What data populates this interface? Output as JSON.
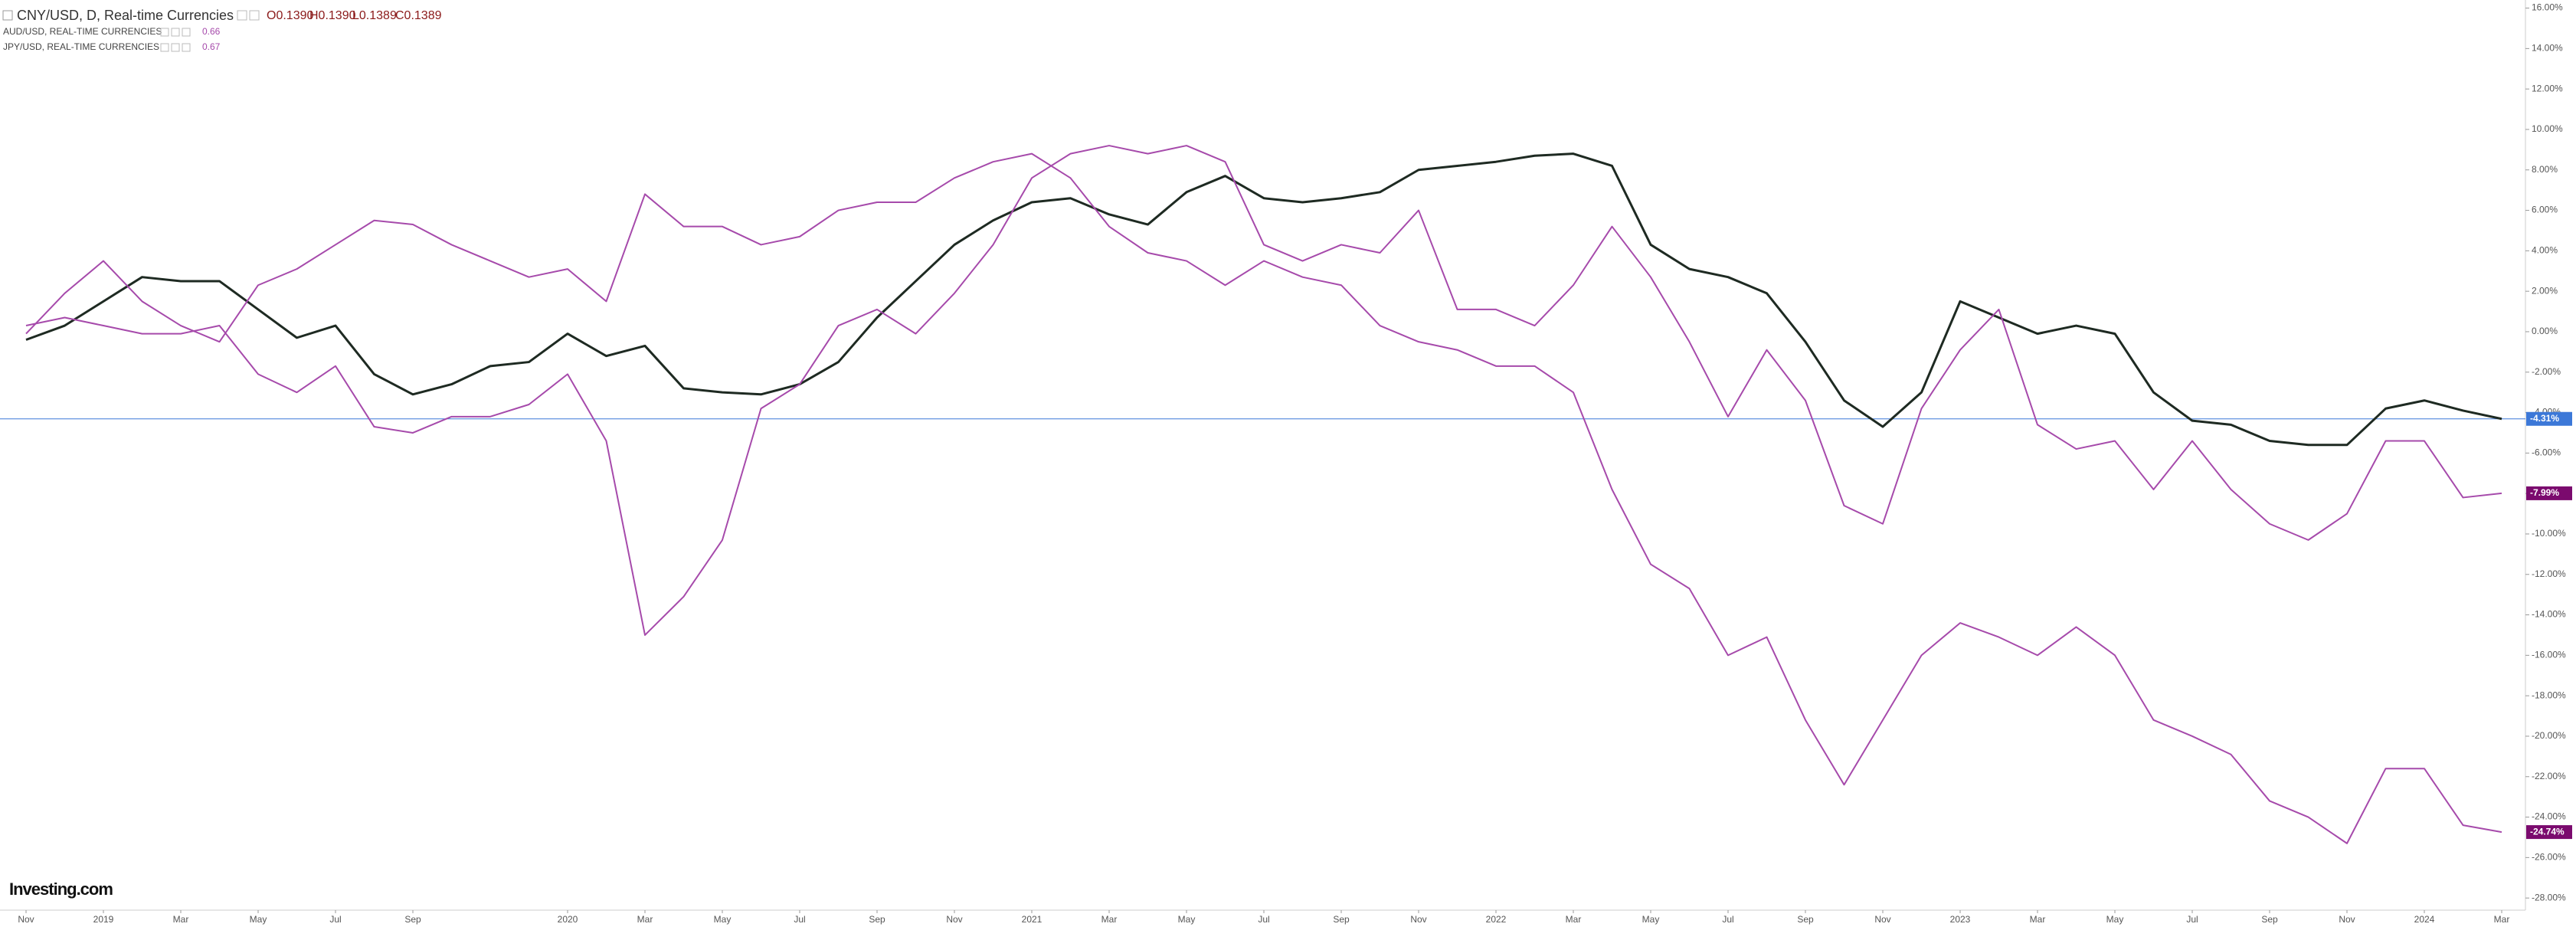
{
  "chart_data": {
    "type": "line",
    "logo": "Investing.com",
    "ohlc": [
      "O0.1390",
      "H0.1390",
      "L0.1389",
      "C0.1389"
    ],
    "categories": [
      "Nov",
      null,
      "2019",
      null,
      "Mar",
      null,
      "May",
      null,
      "Jul",
      null,
      "Sep",
      null,
      null,
      null,
      "2020",
      null,
      "Mar",
      null,
      "May",
      null,
      "Jul",
      null,
      "Sep",
      null,
      "Nov",
      null,
      "2021",
      null,
      "Mar",
      null,
      "May",
      null,
      "Jul",
      null,
      "Sep",
      null,
      "Nov",
      null,
      "2022",
      null,
      "Mar",
      null,
      "May",
      null,
      "Jul",
      null,
      "Sep",
      null,
      "Nov",
      null,
      "2023",
      null,
      "Mar",
      null,
      "May",
      null,
      "Jul",
      null,
      "Sep",
      null,
      "Nov",
      null,
      "2024",
      null,
      "Mar"
    ],
    "ylim": [
      -28.6,
      16.4
    ],
    "yticks": [
      {
        "value": 16,
        "label": "16.00%"
      },
      {
        "value": 14,
        "label": "14.00%"
      },
      {
        "value": 12,
        "label": "12.00%"
      },
      {
        "value": 10,
        "label": "10.00%"
      },
      {
        "value": 8,
        "label": "8.00%"
      },
      {
        "value": 6,
        "label": "6.00%"
      },
      {
        "value": 4,
        "label": "4.00%"
      },
      {
        "value": 2,
        "label": "2.00%"
      },
      {
        "value": 0,
        "label": "0.00%"
      },
      {
        "value": -2,
        "label": "-2.00%"
      },
      {
        "value": -4,
        "label": "-4.00%"
      },
      {
        "value": -6,
        "label": "-6.00%"
      },
      {
        "value": -8,
        "label": "-8.00%"
      },
      {
        "value": -10,
        "label": "-10.00%"
      },
      {
        "value": -12,
        "label": "-12.00%"
      },
      {
        "value": -14,
        "label": "-14.00%"
      },
      {
        "value": -16,
        "label": "-16.00%"
      },
      {
        "value": -18,
        "label": "-18.00%"
      },
      {
        "value": -20,
        "label": "-20.00%"
      },
      {
        "value": -22,
        "label": "-22.00%"
      },
      {
        "value": -24,
        "label": "-24.00%"
      },
      {
        "value": -26,
        "label": "-26.00%"
      },
      {
        "value": -28,
        "label": "-28.00%"
      }
    ],
    "grid": false,
    "series": [
      {
        "name": "CNY/USD, D, Real-time Currencies",
        "color": "#1e2a22",
        "label_color": "#3c78d8",
        "price_line": true,
        "last_label": "-4.31%",
        "values": [
          -0.4,
          0.3,
          1.5,
          2.7,
          2.5,
          2.5,
          1.1,
          -0.3,
          0.3,
          -2.1,
          -3.1,
          -2.6,
          -1.7,
          -1.5,
          -0.1,
          -1.2,
          -0.7,
          -2.8,
          -3.0,
          -3.1,
          -2.6,
          -1.5,
          0.7,
          2.5,
          4.3,
          5.5,
          6.4,
          6.6,
          5.8,
          5.3,
          6.9,
          7.7,
          6.6,
          6.4,
          6.6,
          6.9,
          8.0,
          8.2,
          8.4,
          8.7,
          8.8,
          8.2,
          4.3,
          3.1,
          2.7,
          1.9,
          -0.5,
          -3.4,
          -4.7,
          -3.0,
          1.5,
          0.7,
          -0.1,
          0.3,
          -0.1,
          -3.0,
          -4.4,
          -4.6,
          -5.4,
          -5.6,
          -5.6,
          -3.8,
          -3.4,
          -3.9,
          -4.31
        ]
      },
      {
        "name": "AUD/USD, REAL-TIME CURRENCIES",
        "readout": "0.66",
        "color": "#a64aab",
        "label_color": "#7b0a6e",
        "price_line": false,
        "last_label": "-7.99%",
        "values": [
          0.3,
          0.7,
          0.3,
          -0.1,
          -0.1,
          0.3,
          -2.1,
          -3.0,
          -1.7,
          -4.7,
          -5.0,
          -4.2,
          -4.2,
          -3.6,
          -2.1,
          -5.4,
          -15.0,
          -13.1,
          -10.3,
          -3.8,
          -2.6,
          0.3,
          1.1,
          -0.1,
          1.9,
          4.3,
          7.6,
          8.8,
          9.2,
          8.8,
          9.2,
          8.4,
          4.3,
          3.5,
          4.3,
          3.9,
          6.0,
          1.1,
          1.1,
          0.3,
          2.3,
          5.2,
          2.7,
          -0.5,
          -4.2,
          -0.9,
          -3.4,
          -8.6,
          -9.5,
          -3.8,
          -0.9,
          1.1,
          -4.6,
          -5.8,
          -5.4,
          -7.8,
          -5.4,
          -7.8,
          -9.5,
          -10.3,
          -9.0,
          -5.4,
          -5.4,
          -8.2,
          -7.99
        ]
      },
      {
        "name": "JPY/USD, REAL-TIME CURRENCIES",
        "readout": "0.67",
        "color": "#a64aab",
        "label_color": "#7b0a6e",
        "price_line": false,
        "last_label": "-24.74%",
        "values": [
          -0.1,
          1.9,
          3.5,
          1.5,
          0.3,
          -0.5,
          2.3,
          3.1,
          4.3,
          5.5,
          5.3,
          4.3,
          3.5,
          2.7,
          3.1,
          1.5,
          6.8,
          5.2,
          5.2,
          4.3,
          4.7,
          6.0,
          6.4,
          6.4,
          7.6,
          8.4,
          8.8,
          7.6,
          5.2,
          3.9,
          3.5,
          2.3,
          3.5,
          2.7,
          2.3,
          0.3,
          -0.5,
          -0.9,
          -1.7,
          -1.7,
          -3.0,
          -7.8,
          -11.5,
          -12.7,
          -16.0,
          -15.1,
          -19.2,
          -22.4,
          -19.2,
          -16.0,
          -14.4,
          -15.1,
          -16.0,
          -14.6,
          -16.0,
          -19.2,
          -20.0,
          -20.9,
          -23.2,
          -24.0,
          -25.3,
          -21.6,
          -21.6,
          -24.4,
          -24.74
        ]
      }
    ]
  }
}
